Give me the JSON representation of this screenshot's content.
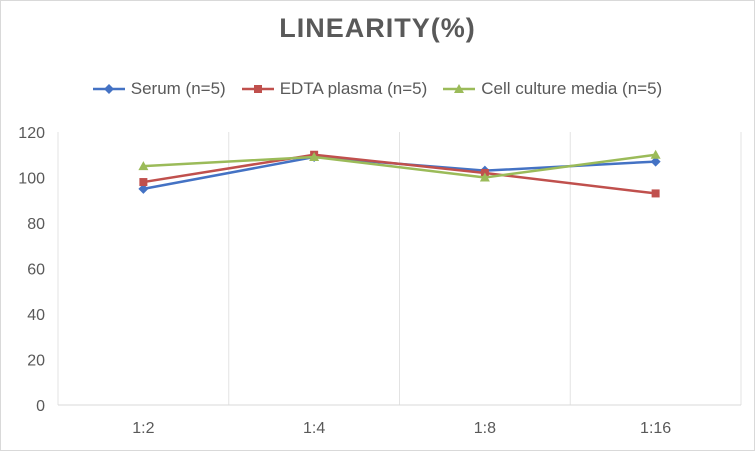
{
  "chart_data": {
    "type": "line",
    "title": "LINEARITY(%)",
    "categories": [
      "1:2",
      "1:4",
      "1:8",
      "1:16"
    ],
    "ylim": [
      0,
      120
    ],
    "yticks": [
      0,
      20,
      40,
      60,
      80,
      100,
      120
    ],
    "grid": "vertical",
    "legend_position": "top",
    "series": [
      {
        "name": "Serum (n=5)",
        "values": [
          95,
          109,
          103,
          107
        ],
        "color": "#4472C4",
        "marker": "diamond"
      },
      {
        "name": "EDTA plasma (n=5)",
        "values": [
          98,
          110,
          102,
          93
        ],
        "color": "#C0504D",
        "marker": "square"
      },
      {
        "name": "Cell culture media (n=5)",
        "values": [
          105,
          109,
          100,
          110
        ],
        "color": "#9BBB59",
        "marker": "triangle"
      }
    ]
  }
}
